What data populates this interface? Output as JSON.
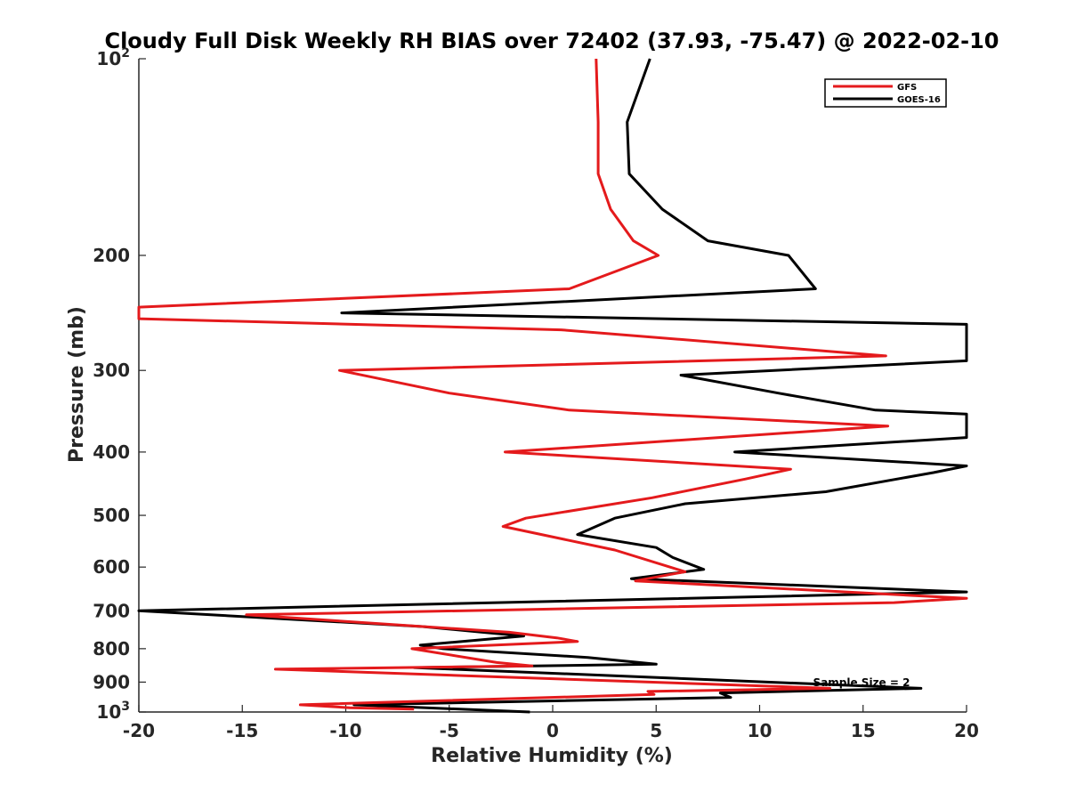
{
  "chart_data": {
    "type": "line",
    "title": "Cloudy Full Disk Weekly RH BIAS over 72402 (37.93, -75.47) @ 2022-02-10",
    "xlabel": "Relative Humidity (%)",
    "ylabel": "Pressure (mb)",
    "xlim": [
      -20,
      20
    ],
    "ylim": [
      1000,
      100
    ],
    "y_scale": "log",
    "y_reversed": true,
    "grid": false,
    "legend_position": "top-right",
    "x_ticks": [
      -20,
      -15,
      -10,
      -5,
      0,
      5,
      10,
      15,
      20
    ],
    "x_tick_labels": [
      "-20",
      "-15",
      "-10",
      "-5",
      "0",
      "5",
      "10",
      "15",
      "20"
    ],
    "y_ticks": [
      100,
      200,
      300,
      400,
      500,
      600,
      700,
      800,
      900,
      1000
    ],
    "y_tick_labels": [
      "10^2",
      "200",
      "300",
      "400",
      "500",
      "600",
      "700",
      "800",
      "900",
      "10^3"
    ],
    "annotation": "Sample Size = 2",
    "series": [
      {
        "name": "GFS",
        "color": "#e41a1c",
        "points": [
          [
            2.1,
            100
          ],
          [
            2.2,
            125
          ],
          [
            2.2,
            150
          ],
          [
            2.8,
            170
          ],
          [
            3.9,
            190
          ],
          [
            5.1,
            200
          ],
          [
            0.8,
            225
          ],
          [
            -20.0,
            240
          ],
          [
            -20.0,
            250
          ],
          [
            0.4,
            260
          ],
          [
            16.1,
            285
          ],
          [
            -10.3,
            300
          ],
          [
            -5.0,
            325
          ],
          [
            0.8,
            345
          ],
          [
            16.2,
            365
          ],
          [
            -2.3,
            400
          ],
          [
            11.5,
            425
          ],
          [
            9.3,
            440
          ],
          [
            4.8,
            470
          ],
          [
            -1.3,
            505
          ],
          [
            -2.4,
            520
          ],
          [
            3.0,
            565
          ],
          [
            6.4,
            610
          ],
          [
            4.0,
            630
          ],
          [
            20.0,
            670
          ],
          [
            16.5,
            680
          ],
          [
            -14.8,
            710
          ],
          [
            -2.1,
            755
          ],
          [
            0.2,
            770
          ],
          [
            1.2,
            780
          ],
          [
            -6.8,
            800
          ],
          [
            -2.7,
            840
          ],
          [
            -1.0,
            850
          ],
          [
            -13.4,
            860
          ],
          [
            13.4,
            920
          ],
          [
            4.6,
            930
          ],
          [
            4.9,
            940
          ],
          [
            -12.2,
            975
          ],
          [
            -9.8,
            985
          ],
          [
            -6.7,
            990
          ]
        ]
      },
      {
        "name": "GOES-16",
        "color": "#000000",
        "points": [
          [
            4.7,
            100
          ],
          [
            3.6,
            125
          ],
          [
            3.7,
            150
          ],
          [
            5.3,
            170
          ],
          [
            7.5,
            190
          ],
          [
            11.4,
            200
          ],
          [
            12.7,
            225
          ],
          [
            -10.2,
            245
          ],
          [
            20.0,
            255
          ],
          [
            20.0,
            290
          ],
          [
            6.2,
            305
          ],
          [
            10.9,
            325
          ],
          [
            15.6,
            345
          ],
          [
            20.0,
            350
          ],
          [
            20.0,
            380
          ],
          [
            8.8,
            400
          ],
          [
            20.0,
            420
          ],
          [
            18.4,
            430
          ],
          [
            13.2,
            460
          ],
          [
            6.4,
            480
          ],
          [
            3.0,
            505
          ],
          [
            1.2,
            535
          ],
          [
            5.0,
            560
          ],
          [
            5.8,
            580
          ],
          [
            7.3,
            605
          ],
          [
            3.8,
            625
          ],
          [
            20.0,
            655
          ],
          [
            -20.0,
            700
          ],
          [
            -6.3,
            740
          ],
          [
            -3.4,
            755
          ],
          [
            -1.4,
            765
          ],
          [
            -6.4,
            790
          ],
          [
            -5.3,
            800
          ],
          [
            1.7,
            825
          ],
          [
            5.0,
            845
          ],
          [
            -6.7,
            855
          ],
          [
            17.8,
            920
          ],
          [
            8.1,
            935
          ],
          [
            8.6,
            950
          ],
          [
            -9.6,
            975
          ],
          [
            -1.1,
            1000
          ]
        ]
      }
    ]
  }
}
